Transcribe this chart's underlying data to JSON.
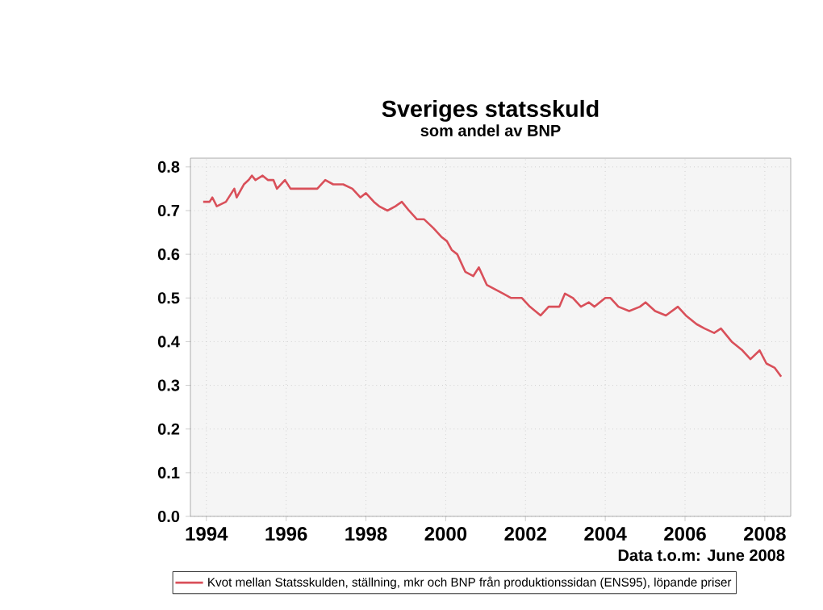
{
  "chart_data": {
    "type": "line",
    "title": "Sveriges statsskuld",
    "subtitle": "som andel av BNP",
    "annotations": [
      "Data t.o.m: June 2008"
    ],
    "series": [
      {
        "name": "Kvot mellan Statsskulden, ställning, mkr och BNP från produktionssidan (ENS95), löpande priser",
        "color": "#d9505a",
        "x": [
          1993.92,
          1994.08,
          1994.15,
          1994.26,
          1994.49,
          1994.7,
          1994.76,
          1994.94,
          1995.06,
          1995.14,
          1995.23,
          1995.41,
          1995.54,
          1995.68,
          1995.77,
          1995.97,
          1996.11,
          1996.31,
          1996.51,
          1996.78,
          1996.98,
          1997.18,
          1997.43,
          1997.66,
          1997.86,
          1998.0,
          1998.2,
          1998.33,
          1998.54,
          1998.74,
          1998.9,
          1999.08,
          1999.28,
          1999.46,
          1999.69,
          1999.89,
          2000.03,
          2000.15,
          2000.29,
          2000.49,
          2000.69,
          2000.83,
          2001.03,
          2001.23,
          2001.44,
          2001.64,
          2001.91,
          2002.11,
          2002.38,
          2002.58,
          2002.85,
          2002.99,
          2003.19,
          2003.39,
          2003.59,
          2003.73,
          2004.0,
          2004.13,
          2004.33,
          2004.6,
          2004.87,
          2005.01,
          2005.25,
          2005.52,
          2005.82,
          2006.02,
          2006.29,
          2006.49,
          2006.73,
          2006.9,
          2007.17,
          2007.44,
          2007.64,
          2007.87,
          2008.04,
          2008.25,
          2008.41
        ],
        "values": [
          0.72,
          0.72,
          0.73,
          0.71,
          0.72,
          0.75,
          0.73,
          0.76,
          0.77,
          0.78,
          0.77,
          0.78,
          0.77,
          0.77,
          0.75,
          0.77,
          0.75,
          0.75,
          0.75,
          0.75,
          0.77,
          0.76,
          0.76,
          0.75,
          0.73,
          0.74,
          0.72,
          0.71,
          0.7,
          0.71,
          0.72,
          0.7,
          0.68,
          0.68,
          0.66,
          0.64,
          0.63,
          0.61,
          0.6,
          0.56,
          0.55,
          0.57,
          0.53,
          0.52,
          0.51,
          0.5,
          0.5,
          0.48,
          0.46,
          0.48,
          0.48,
          0.51,
          0.5,
          0.48,
          0.49,
          0.48,
          0.5,
          0.5,
          0.48,
          0.47,
          0.48,
          0.49,
          0.47,
          0.46,
          0.48,
          0.46,
          0.44,
          0.43,
          0.42,
          0.43,
          0.4,
          0.38,
          0.36,
          0.38,
          0.35,
          0.34,
          0.32
        ]
      }
    ],
    "xlim": [
      1993.6,
      2008.65
    ],
    "xticks": [
      1994,
      1996,
      1998,
      2000,
      2002,
      2004,
      2006,
      2008
    ],
    "ylim": [
      0,
      0.82
    ],
    "yticks": [
      {
        "value": 0,
        "label": "0.0"
      },
      {
        "value": 0.1,
        "label": "0.1"
      },
      {
        "value": 0.2,
        "label": "0.2"
      },
      {
        "value": 0.3,
        "label": "0.3"
      },
      {
        "value": 0.4,
        "label": "0.4"
      },
      {
        "value": 0.5,
        "label": "0.5"
      },
      {
        "value": 0.6,
        "label": "0.6"
      },
      {
        "value": 0.7,
        "label": "0.7"
      },
      {
        "value": 0.8,
        "label": "0.8"
      }
    ],
    "grid": true,
    "legend": "bottom",
    "marker": "none",
    "line_style": "solid"
  }
}
